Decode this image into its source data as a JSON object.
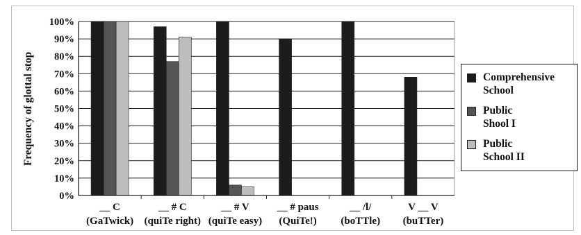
{
  "chart_data": {
    "type": "bar",
    "ylabel": "Frequency of glottal stop",
    "ylim": [
      0,
      100
    ],
    "yticks": [
      "0%",
      "10%",
      "20%",
      "30%",
      "40%",
      "50%",
      "60%",
      "70%",
      "80%",
      "90%",
      "100%"
    ],
    "grid": true,
    "legend_position": "right",
    "categories": [
      {
        "line1": "__ C",
        "line2": "(GaTwick)"
      },
      {
        "line1": "__ # C",
        "line2": "(quiTe right)"
      },
      {
        "line1": "__ # V",
        "line2": "(quiTe easy)"
      },
      {
        "line1": "__ # paus",
        "line2": "(QuiTe!)"
      },
      {
        "line1": "__ /l/",
        "line2": "(boTTle)"
      },
      {
        "line1": "V __ V",
        "line2": "(buTTer)"
      }
    ],
    "series": [
      {
        "name": "Comprehensive\nSchool",
        "color": "#1c1c1c",
        "values": [
          100,
          97,
          100,
          90,
          100,
          68
        ]
      },
      {
        "name": "Public\nShool I",
        "color": "#555555",
        "values": [
          100,
          77,
          6,
          0,
          0,
          0
        ]
      },
      {
        "name": "Public\nSchool II",
        "color": "#bdbdbd",
        "values": [
          100,
          91,
          5,
          0,
          0,
          0
        ]
      }
    ]
  }
}
